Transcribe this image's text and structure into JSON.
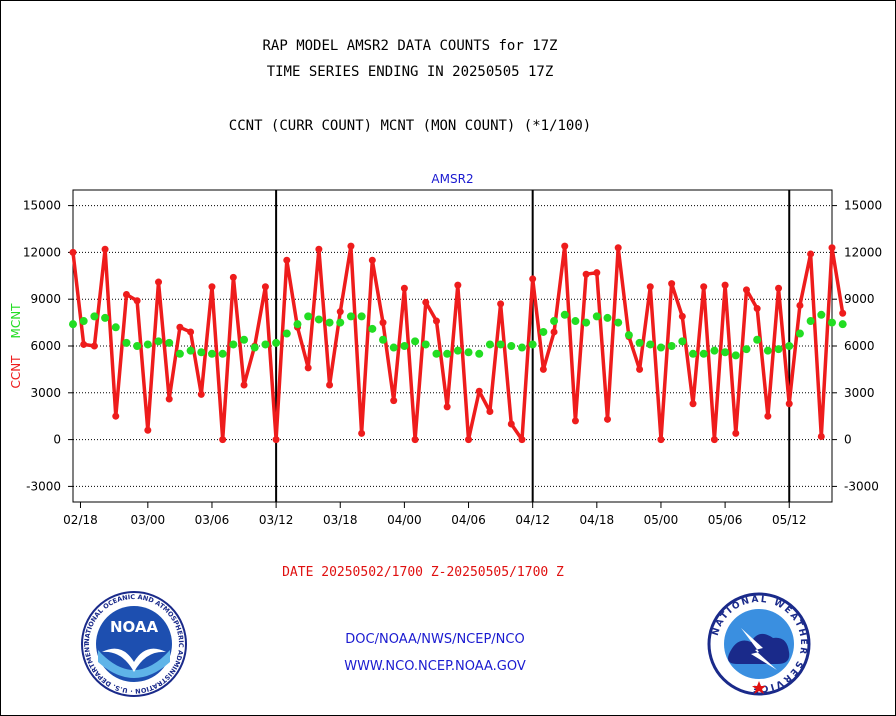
{
  "header": {
    "title_line1": "RAP MODEL AMSR2 DATA COUNTS for 17Z",
    "title_line2": "TIME SERIES ENDING IN 20250505 17Z",
    "subtitle": "CCNT (CURR COUNT) MCNT (MON COUNT) (*1/100)"
  },
  "footer": {
    "date_range": "DATE 20250502/1700 Z-20250505/1700 Z",
    "org_line": "DOC/NOAA/NWS/NCEP/NCO",
    "url_line": "WWW.NCO.NCEP.NOAA.GOV"
  },
  "logos": {
    "noaa_text": "NOAA",
    "noaa_ring_text": "NATIONAL OCEANIC AND ATMOSPHERIC ADMINISTRATION · U.S. DEPARTMENT OF COMMERCE ·",
    "nws_ring_text": "NATIONAL WEATHER SERVICE"
  },
  "colors": {
    "ccnt": "#ee1c1c",
    "mcnt": "#22dd22",
    "plot_label": "#1a1ad0"
  },
  "chart_data": {
    "type": "line",
    "plot_label": "AMSR2",
    "ylabel_left_1": "CCNT",
    "ylabel_left_2": "MCNT",
    "ylim": [
      -4000,
      16000
    ],
    "yticks": [
      -3000,
      0,
      3000,
      6000,
      9000,
      12000,
      15000
    ],
    "ytick_labels": [
      "-3000",
      "0",
      "3000",
      "6000",
      "9000",
      "12000",
      "15000"
    ],
    "x_index_range": [
      0,
      71
    ],
    "xticks": [
      {
        "label": "02/18",
        "index": 0.7
      },
      {
        "label": "03/00",
        "index": 7.0
      },
      {
        "label": "03/06",
        "index": 13.0
      },
      {
        "label": "03/12",
        "index": 19.0
      },
      {
        "label": "03/18",
        "index": 25.0
      },
      {
        "label": "04/00",
        "index": 31.0
      },
      {
        "label": "04/06",
        "index": 37.0
      },
      {
        "label": "04/12",
        "index": 43.0
      },
      {
        "label": "04/18",
        "index": 49.0
      },
      {
        "label": "05/00",
        "index": 55.0
      },
      {
        "label": "05/06",
        "index": 61.0
      },
      {
        "label": "05/12",
        "index": 67.0
      }
    ],
    "day_separators": [
      19.0,
      43.0,
      67.0
    ],
    "grid": true,
    "series": [
      {
        "name": "CCNT",
        "color": "#ee1c1c",
        "values": [
          12000,
          6100,
          6000,
          12200,
          1500,
          9300,
          8900,
          600,
          10100,
          2600,
          7200,
          6900,
          2900,
          9800,
          0,
          10400,
          3500,
          6000,
          9800,
          0,
          11500,
          7200,
          4600,
          12200,
          3500,
          8200,
          12400,
          400,
          11500,
          7500,
          2500,
          9700,
          0,
          8800,
          7600,
          2100,
          9900,
          0,
          3100,
          1800,
          8700,
          1000,
          0,
          10300,
          4500,
          6900,
          12400,
          1200,
          10600,
          10700,
          1300,
          12300,
          6600,
          4500,
          9800,
          0,
          10000,
          7900,
          2300,
          9800,
          0,
          9900,
          400,
          9600,
          8400,
          1500,
          9700,
          2300,
          8600,
          11900,
          200,
          12300,
          8100
        ]
      },
      {
        "name": "MCNT",
        "color": "#22dd22",
        "values": [
          7400,
          7600,
          7900,
          7800,
          7200,
          6200,
          6000,
          6100,
          6300,
          6200,
          5500,
          5700,
          5600,
          5500,
          5500,
          6100,
          6400,
          5900,
          6100,
          6200,
          6800,
          7400,
          7900,
          7700,
          7500,
          7500,
          7900,
          7900,
          7100,
          6400,
          5900,
          6000,
          6300,
          6100,
          5500,
          5500,
          5700,
          5600,
          5500,
          6100,
          6100,
          6000,
          5900,
          6100,
          6900,
          7600,
          8000,
          7600,
          7500,
          7900,
          7800,
          7500,
          6700,
          6200,
          6100,
          5900,
          6000,
          6300,
          5500,
          5500,
          5700,
          5600,
          5400,
          5800,
          6400,
          5700,
          5800,
          6000,
          6800,
          7600,
          8000,
          7500,
          7400
        ]
      }
    ]
  }
}
